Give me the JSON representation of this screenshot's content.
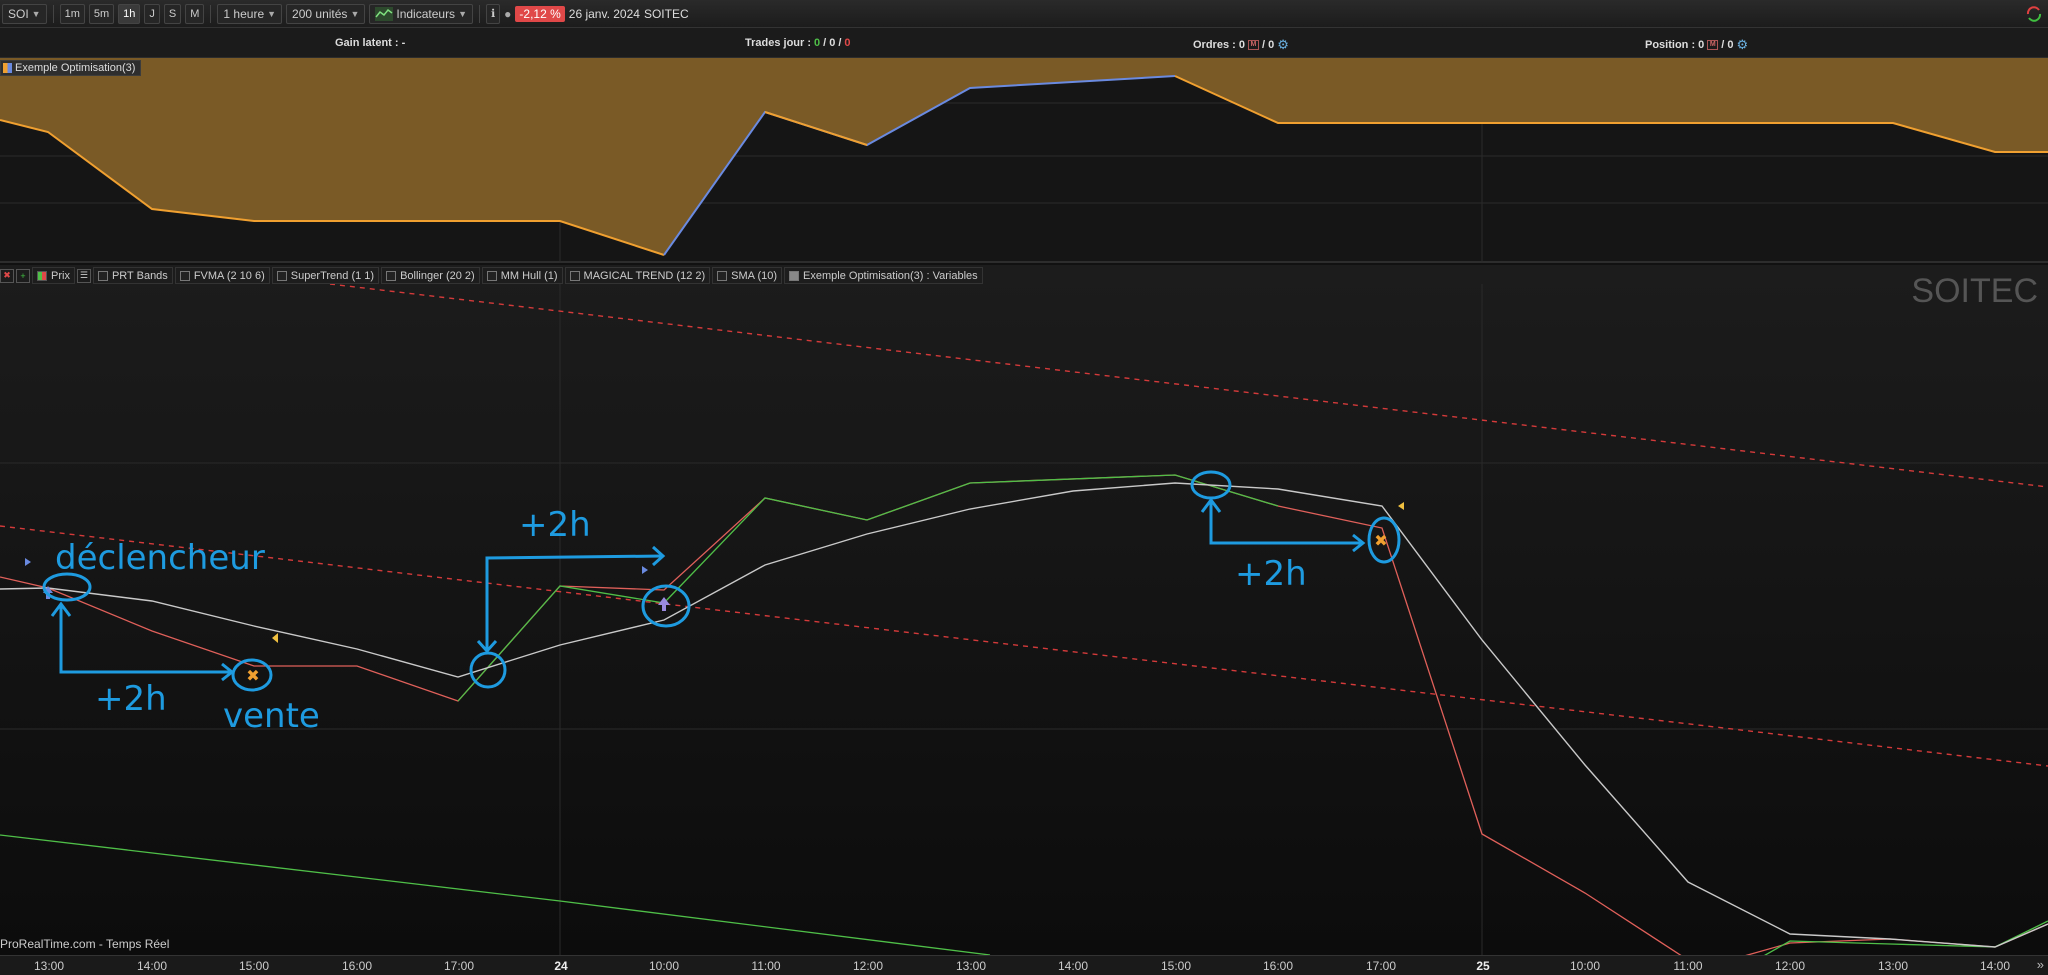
{
  "toolbar": {
    "symbol": "SOI",
    "timeframes": [
      "1m",
      "5m",
      "1h",
      "J",
      "S",
      "M"
    ],
    "active_timeframe": "1h",
    "period": "1 heure",
    "units": "200 unités",
    "indicators": "Indicateurs",
    "change": "-2,12 %",
    "date": "26 janv. 2024",
    "name": "SOITEC"
  },
  "infobar": {
    "gain": "Gain latent : -",
    "trades_label": "Trades jour :",
    "trades_1": "0",
    "trades_sep1": " / ",
    "trades_2": "0",
    "trades_sep2": " / ",
    "trades_3": "0",
    "orders_label": "Ordres : 0",
    "orders_tail": " / 0",
    "position_label": "Position : 0",
    "position_tail": " / 0"
  },
  "indicator_panel": {
    "label": "Exemple Optimisation(3)"
  },
  "legend": {
    "prix": "Prix",
    "items": [
      {
        "label": "PRT Bands",
        "checked": false
      },
      {
        "label": "FVMA (2 10 6)",
        "checked": false
      },
      {
        "label": "SuperTrend (1 1)",
        "checked": false
      },
      {
        "label": "Bollinger (20 2)",
        "checked": false
      },
      {
        "label": "MM Hull (1)",
        "checked": false
      },
      {
        "label": "MAGICAL TREND (12 2)",
        "checked": false
      },
      {
        "label": "SMA (10)",
        "checked": false
      },
      {
        "label": "Exemple Optimisation(3) : Variables",
        "checked": true
      }
    ]
  },
  "watermark": "SOITEC",
  "source": "ProRealTime.com - Temps Réel",
  "time_axis": [
    {
      "label": "13:00",
      "day": false
    },
    {
      "label": "14:00",
      "day": false
    },
    {
      "label": "15:00",
      "day": false
    },
    {
      "label": "16:00",
      "day": false
    },
    {
      "label": "17:00",
      "day": false
    },
    {
      "label": "24",
      "day": true
    },
    {
      "label": "10:00",
      "day": false
    },
    {
      "label": "11:00",
      "day": false
    },
    {
      "label": "12:00",
      "day": false
    },
    {
      "label": "13:00",
      "day": false
    },
    {
      "label": "14:00",
      "day": false
    },
    {
      "label": "15:00",
      "day": false
    },
    {
      "label": "16:00",
      "day": false
    },
    {
      "label": "17:00",
      "day": false
    },
    {
      "label": "25",
      "day": true
    },
    {
      "label": "10:00",
      "day": false
    },
    {
      "label": "11:00",
      "day": false
    },
    {
      "label": "12:00",
      "day": false
    },
    {
      "label": "13:00",
      "day": false
    },
    {
      "label": "14:00",
      "day": false
    }
  ],
  "annotations": {
    "trigger": "déclencheur",
    "sell": "vente",
    "plus2h_a": "+2h",
    "plus2h_b": "+2h",
    "plus2h_c": "+2h"
  },
  "colors": {
    "price_line": "#c9c9c9",
    "red_line": "#e0605a",
    "green_line": "#4fbf48",
    "area_fill": "#7a5a26",
    "area_line_orange": "#f0a030",
    "area_line_blue": "#6a8ae0",
    "annotation": "#1e9be0",
    "dashed": "#d43a3a"
  }
}
